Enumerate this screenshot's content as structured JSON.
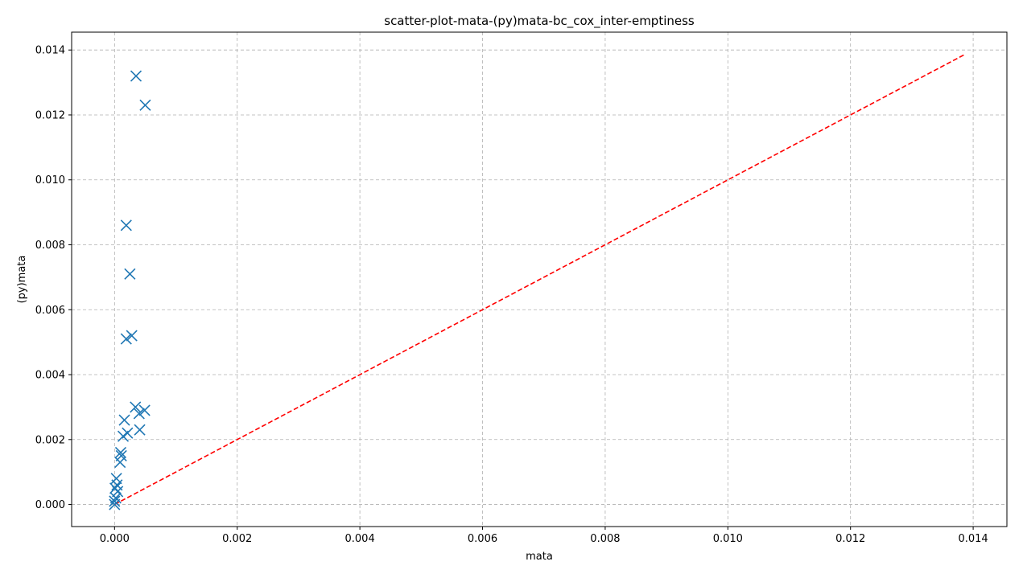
{
  "chart_data": {
    "type": "scatter",
    "title": "scatter-plot-mata-(py)mata-bc_cox_inter-emptiness",
    "xlabel": "mata",
    "ylabel": "(py)mata",
    "xlim": [
      -0.0007,
      0.01455
    ],
    "ylim": [
      -0.00068,
      0.01455
    ],
    "xticks": [
      0.0,
      0.002,
      0.004,
      0.006,
      0.008,
      0.01,
      0.012,
      0.014
    ],
    "yticks": [
      0.0,
      0.002,
      0.004,
      0.006,
      0.008,
      0.01,
      0.012,
      0.014
    ],
    "xtick_labels": [
      "0.000",
      "0.002",
      "0.004",
      "0.006",
      "0.008",
      "0.010",
      "0.012",
      "0.014"
    ],
    "ytick_labels": [
      "0.000",
      "0.002",
      "0.004",
      "0.006",
      "0.008",
      "0.010",
      "0.012",
      "0.014"
    ],
    "grid": true,
    "series": [
      {
        "marker": "x",
        "color": "#1f77b4",
        "points": [
          {
            "x": 0.00035,
            "y": 0.0132
          },
          {
            "x": 0.0005,
            "y": 0.0123
          },
          {
            "x": 0.00019,
            "y": 0.0086
          },
          {
            "x": 0.00025,
            "y": 0.0071
          },
          {
            "x": 0.00028,
            "y": 0.0052
          },
          {
            "x": 0.00019,
            "y": 0.0051
          },
          {
            "x": 0.00034,
            "y": 0.003
          },
          {
            "x": 0.00049,
            "y": 0.0029
          },
          {
            "x": 0.0004,
            "y": 0.0028
          },
          {
            "x": 0.00016,
            "y": 0.0026
          },
          {
            "x": 0.00041,
            "y": 0.0023
          },
          {
            "x": 0.00021,
            "y": 0.0022
          },
          {
            "x": 0.00014,
            "y": 0.0021
          },
          {
            "x": 0.0001,
            "y": 0.0016
          },
          {
            "x": 0.00011,
            "y": 0.0015
          },
          {
            "x": 9e-05,
            "y": 0.0013
          },
          {
            "x": 3e-05,
            "y": 0.0008
          },
          {
            "x": 4e-05,
            "y": 0.0006
          },
          {
            "x": 1e-05,
            "y": 0.0005
          },
          {
            "x": 5e-05,
            "y": 0.0004
          },
          {
            "x": 2e-05,
            "y": 0.0002
          },
          {
            "x": 0.0,
            "y": 0.0001
          },
          {
            "x": 0.0,
            "y": 0.0
          }
        ]
      }
    ],
    "reference_line": {
      "style": "dashed",
      "color": "#ff0000",
      "from": [
        0.0,
        0.0
      ],
      "to": [
        0.01385,
        0.01385
      ]
    }
  }
}
